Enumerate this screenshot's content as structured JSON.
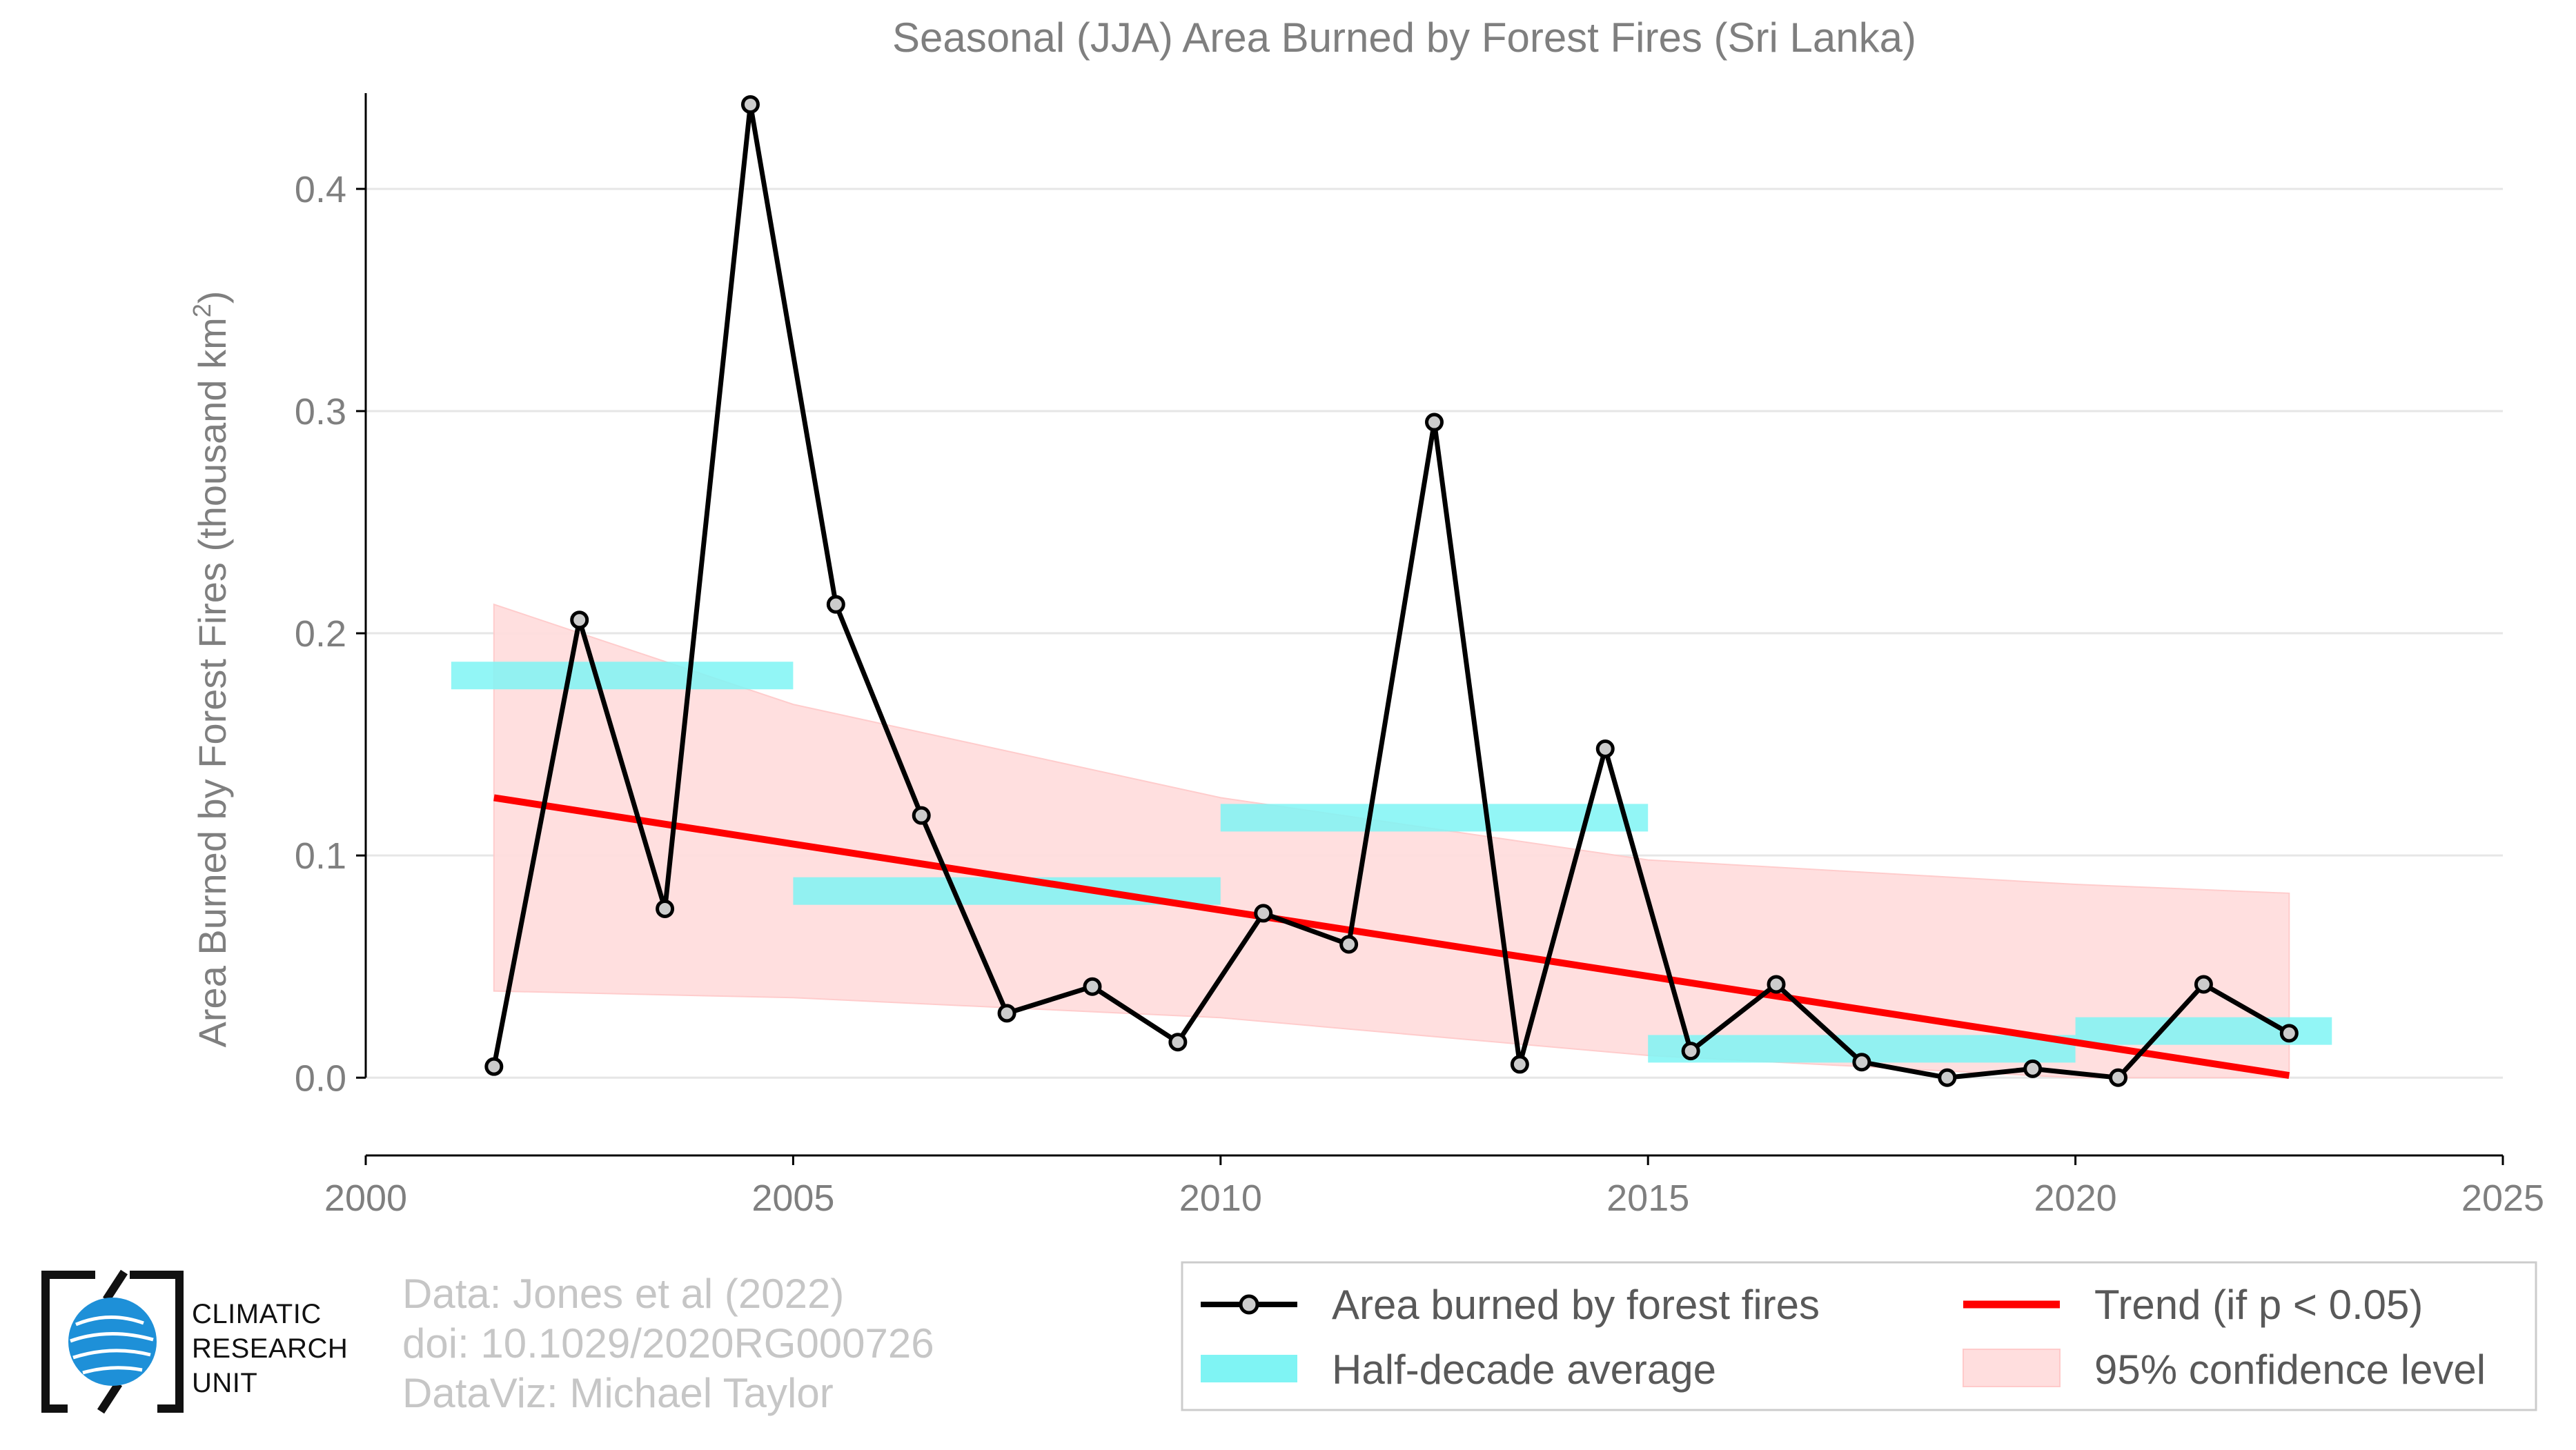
{
  "colors": {
    "series": "#000000",
    "marker_fill": "#cccccc",
    "half_decade": "#7ff4f4",
    "trend": "#ff0000",
    "confidence": "#ffdede",
    "text": "#7f7f7f",
    "grid": "#e6e6e6"
  },
  "chart_data": {
    "type": "line",
    "title": "Seasonal (JJA) Area Burned by Forest Fires (Sri Lanka)",
    "xlabel": "",
    "ylabel": "Area Burned by Forest Fires (thousand km",
    "ylabel_sup": "2",
    "ylabel_tail": ")",
    "xlim": [
      2000,
      2025
    ],
    "ylim": [
      -0.035,
      0.44
    ],
    "x_ticks": [
      2000,
      2005,
      2010,
      2015,
      2020,
      2025
    ],
    "x_tick_labels": [
      "2000",
      "2005",
      "2010",
      "2015",
      "2020",
      "2025"
    ],
    "y_ticks": [
      0.0,
      0.1,
      0.2,
      0.3,
      0.4
    ],
    "y_tick_labels": [
      "0.0",
      "0.1",
      "0.2",
      "0.3",
      "0.4"
    ],
    "grid": "horizontal",
    "legend_position": "bottom-right",
    "series": [
      {
        "name": "Area burned by forest fires",
        "x": [
          2001.5,
          2002.5,
          2003.5,
          2004.5,
          2005.5,
          2006.5,
          2007.5,
          2008.5,
          2009.5,
          2010.5,
          2011.5,
          2012.5,
          2013.5,
          2014.5,
          2015.5,
          2016.5,
          2017.5,
          2018.5,
          2019.5,
          2020.5,
          2021.5,
          2022.5
        ],
        "y": [
          0.005,
          0.206,
          0.076,
          0.438,
          0.213,
          0.118,
          0.029,
          0.041,
          0.016,
          0.074,
          0.06,
          0.295,
          0.006,
          0.148,
          0.012,
          0.042,
          0.007,
          0.0,
          0.004,
          0.0,
          0.042,
          0.02
        ]
      }
    ],
    "half_decade_average": {
      "name": "Half-decade average",
      "segments": [
        {
          "x_start": 2001.0,
          "x_end": 2005.0,
          "value": 0.181
        },
        {
          "x_start": 2005.0,
          "x_end": 2010.0,
          "value": 0.084
        },
        {
          "x_start": 2010.0,
          "x_end": 2015.0,
          "value": 0.117
        },
        {
          "x_start": 2015.0,
          "x_end": 2020.0,
          "value": 0.013
        },
        {
          "x_start": 2020.0,
          "x_end": 2023.0,
          "value": 0.021
        }
      ]
    },
    "trend": {
      "name": "Trend (if p < 0.05)",
      "x": [
        2001.5,
        2022.5
      ],
      "y": [
        0.126,
        0.001
      ]
    },
    "confidence": {
      "name": "95% confidence level",
      "x": [
        2001.5,
        2005.0,
        2010.0,
        2015.0,
        2020.0,
        2022.5
      ],
      "upper": [
        0.213,
        0.168,
        0.126,
        0.098,
        0.087,
        0.083
      ],
      "lower": [
        0.039,
        0.036,
        0.027,
        0.01,
        -0.025,
        -0.082
      ]
    }
  },
  "legend": {
    "items": [
      {
        "label": "Area burned by forest fires",
        "kind": "line-marker"
      },
      {
        "label": "Trend (if p < 0.05)",
        "kind": "trend"
      },
      {
        "label": "Half-decade average",
        "kind": "half-decade"
      },
      {
        "label": "95% confidence level",
        "kind": "confidence"
      }
    ]
  },
  "credits": {
    "line1": "Data: Jones et al (2022)",
    "line2": "doi: 10.1029/2020RG000726",
    "line3": "DataViz: Michael Taylor"
  },
  "logo": {
    "text_line1": "CLIMATIC",
    "text_line2": "RESEARCH",
    "text_line3": "UNIT"
  }
}
